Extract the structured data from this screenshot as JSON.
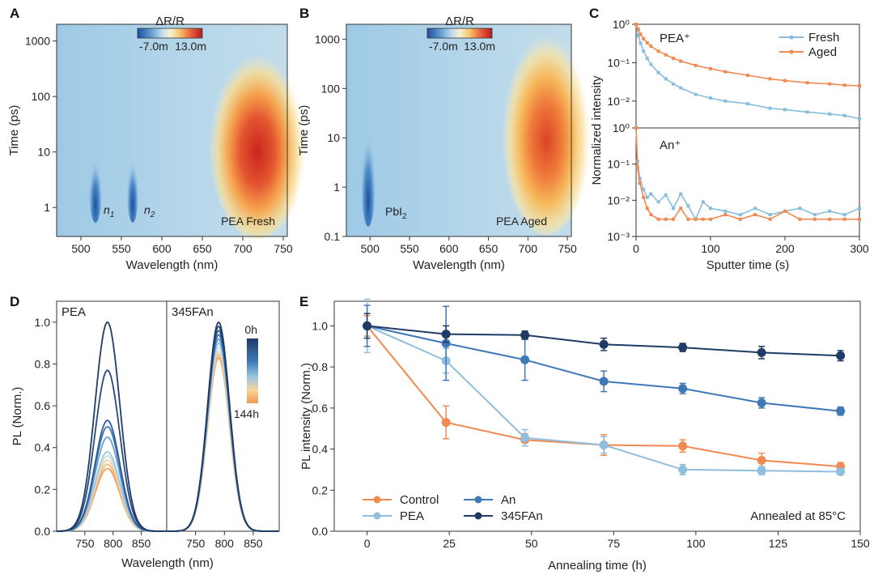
{
  "colors": {
    "control": "#f08a52",
    "pea": "#8fbfdc",
    "an": "#3f78b7",
    "fa345": "#1f3b66",
    "fresh": "#88bedc",
    "aged": "#f08a52",
    "axis": "#333333"
  },
  "chart_data": [
    {
      "panel": "A",
      "type": "heatmap",
      "colorbar": {
        "title": "ΔR/R",
        "min_label": "-7.0m",
        "max_label": "13.0m",
        "range": [
          -0.007,
          0.013
        ]
      },
      "xlabel": "Wavelength (nm)",
      "ylabel": "Time (ps)",
      "xlim": [
        470,
        755
      ],
      "ylim": [
        0.3,
        2000
      ],
      "xticks": [
        "500",
        "550",
        "600",
        "650",
        "700",
        "750"
      ],
      "yticks": [
        "1",
        "10",
        "100",
        "1000"
      ],
      "annotations": {
        "n1": "n",
        "n1_sub": "1",
        "n2": "n",
        "n2_sub": "2",
        "label": "PEA Fresh"
      }
    },
    {
      "panel": "B",
      "type": "heatmap",
      "colorbar": {
        "title": "ΔR/R",
        "min_label": "-7.0m",
        "max_label": "13.0m",
        "range": [
          -0.007,
          0.013
        ]
      },
      "xlabel": "Wavelength (nm)",
      "ylabel": "Time (ps)",
      "xlim": [
        470,
        755
      ],
      "ylim": [
        0.1,
        2000
      ],
      "xticks": [
        "500",
        "550",
        "600",
        "650",
        "700",
        "750"
      ],
      "yticks": [
        "0.1",
        "1",
        "10",
        "100",
        "1000"
      ],
      "annotations": {
        "pbi": "PbI",
        "pbi_sub": "2",
        "label": "PEA Aged"
      }
    },
    {
      "panel": "C",
      "type": "line",
      "xlabel": "Sputter time (s)",
      "ylabel": "Normalized intensity",
      "xlim": [
        0,
        300
      ],
      "xticks": [
        "0",
        "100",
        "200",
        "300"
      ],
      "subplots": [
        {
          "name": "PEA⁺",
          "ylim": [
            0.002,
            1
          ],
          "yticks": [
            "10⁰",
            "10⁻¹",
            "10⁻²"
          ],
          "series": [
            {
              "name": "Fresh",
              "x": [
                0,
                3,
                6,
                10,
                15,
                20,
                30,
                40,
                50,
                60,
                80,
                100,
                120,
                150,
                180,
                200,
                230,
                260,
                280,
                300
              ],
              "y": [
                1.0,
                0.5,
                0.32,
                0.2,
                0.13,
                0.09,
                0.055,
                0.038,
                0.028,
                0.022,
                0.015,
                0.012,
                0.01,
                0.0085,
                0.0065,
                0.006,
                0.0052,
                0.0046,
                0.0042,
                0.0035
              ]
            },
            {
              "name": "Aged",
              "x": [
                0,
                3,
                6,
                10,
                15,
                20,
                30,
                40,
                50,
                60,
                80,
                100,
                120,
                150,
                180,
                200,
                230,
                260,
                280,
                300
              ],
              "y": [
                1.0,
                0.75,
                0.55,
                0.42,
                0.33,
                0.27,
                0.2,
                0.16,
                0.13,
                0.11,
                0.085,
                0.07,
                0.058,
                0.047,
                0.038,
                0.034,
                0.03,
                0.028,
                0.026,
                0.025
              ]
            }
          ]
        },
        {
          "name": "An⁺",
          "ylim": [
            0.001,
            1
          ],
          "yticks": [
            "10⁰",
            "10⁻¹",
            "10⁻²",
            "10⁻³"
          ],
          "series": [
            {
              "name": "Fresh",
              "x": [
                0,
                2,
                5,
                10,
                15,
                20,
                30,
                40,
                50,
                60,
                70,
                80,
                90,
                100,
                120,
                140,
                160,
                180,
                200,
                220,
                240,
                260,
                280,
                300
              ],
              "y": [
                1.0,
                0.12,
                0.04,
                0.02,
                0.012,
                0.015,
                0.009,
                0.014,
                0.006,
                0.015,
                0.007,
                0.003,
                0.009,
                0.006,
                0.005,
                0.004,
                0.006,
                0.004,
                0.005,
                0.006,
                0.004,
                0.005,
                0.004,
                0.006
              ]
            },
            {
              "name": "Aged",
              "x": [
                0,
                2,
                5,
                10,
                15,
                20,
                30,
                40,
                50,
                60,
                70,
                80,
                90,
                100,
                120,
                140,
                160,
                180,
                200,
                220,
                240,
                260,
                280,
                300
              ],
              "y": [
                1.0,
                0.08,
                0.03,
                0.012,
                0.006,
                0.004,
                0.003,
                0.003,
                0.003,
                0.006,
                0.003,
                0.003,
                0.003,
                0.003,
                0.004,
                0.003,
                0.004,
                0.003,
                0.005,
                0.003,
                0.003,
                0.003,
                0.003,
                0.003
              ]
            }
          ]
        }
      ],
      "legend": [
        "Fresh",
        "Aged"
      ]
    },
    {
      "panel": "D",
      "type": "line",
      "xlabel": "Wavelength (nm)",
      "ylabel": "PL (Norm.)",
      "ylim": [
        0,
        1.1
      ],
      "yticks": [
        "0.0",
        "0.2",
        "0.4",
        "0.6",
        "0.8",
        "1.0"
      ],
      "subpanels": [
        {
          "label": "PEA",
          "xlim": [
            700,
            895
          ],
          "xticks": [
            "750",
            "800",
            "850"
          ],
          "center": 790,
          "width": 22,
          "peaks": [
            1.0,
            0.77,
            0.53,
            0.5,
            0.45,
            0.38,
            0.36,
            0.34,
            0.32,
            0.3
          ]
        },
        {
          "label": "345FAn",
          "xlim": [
            700,
            895
          ],
          "xticks": [
            "750",
            "800",
            "850"
          ],
          "center": 790,
          "width": 19,
          "peaks": [
            1.0,
            0.98,
            0.96,
            0.94,
            0.92,
            0.9,
            0.88,
            0.86,
            0.845,
            0.83
          ]
        }
      ],
      "colorbar": {
        "top_label": "0h",
        "bottom_label": "144h"
      }
    },
    {
      "panel": "E",
      "type": "line",
      "xlabel": "Annealing time (h)",
      "ylabel": "PL intensity (Norm.)",
      "xlim": [
        -10,
        150
      ],
      "ylim": [
        0,
        1.12
      ],
      "xticks": [
        "0",
        "25",
        "50",
        "75",
        "100",
        "125",
        "150"
      ],
      "yticks": [
        "0.0",
        "0.2",
        "0.4",
        "0.6",
        "0.8",
        "1.0"
      ],
      "annotation": "Annealed at 85°C",
      "series": [
        {
          "name": "Control",
          "x": [
            0,
            24,
            48,
            72,
            96,
            120,
            144
          ],
          "y": [
            1.0,
            0.53,
            0.445,
            0.42,
            0.415,
            0.345,
            0.315
          ],
          "err": [
            0.05,
            0.08,
            0.03,
            0.05,
            0.03,
            0.035,
            0.02
          ]
        },
        {
          "name": "PEA",
          "x": [
            0,
            24,
            48,
            72,
            96,
            120,
            144
          ],
          "y": [
            1.0,
            0.83,
            0.455,
            0.42,
            0.3,
            0.295,
            0.29
          ],
          "err": [
            0.13,
            0.06,
            0.04,
            0.04,
            0.025,
            0.02,
            0.015
          ]
        },
        {
          "name": "An",
          "x": [
            0,
            24,
            48,
            72,
            96,
            120,
            144
          ],
          "y": [
            1.0,
            0.915,
            0.835,
            0.73,
            0.695,
            0.625,
            0.585
          ],
          "err": [
            0.1,
            0.18,
            0.1,
            0.05,
            0.025,
            0.025,
            0.02
          ]
        },
        {
          "name": "345FAn",
          "x": [
            0,
            24,
            48,
            72,
            96,
            120,
            144
          ],
          "y": [
            1.0,
            0.96,
            0.955,
            0.91,
            0.895,
            0.87,
            0.855
          ],
          "err": [
            0.06,
            0.04,
            0.02,
            0.03,
            0.02,
            0.03,
            0.025
          ]
        }
      ],
      "legend": [
        "Control",
        "PEA",
        "An",
        "345FAn"
      ]
    }
  ],
  "panel_labels": [
    "A",
    "B",
    "C",
    "D",
    "E"
  ]
}
